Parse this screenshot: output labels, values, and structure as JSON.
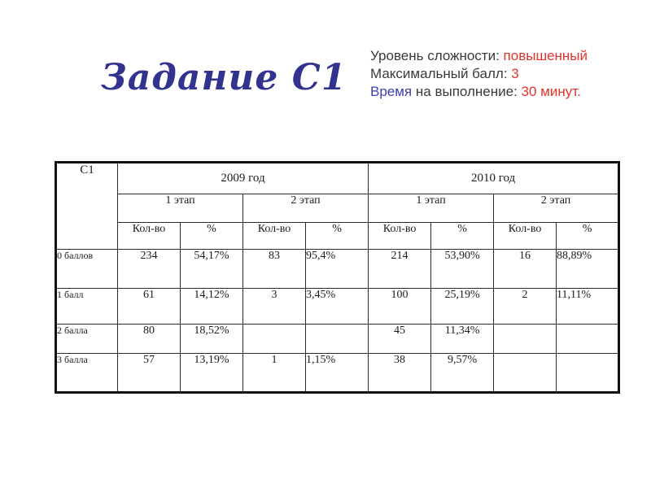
{
  "title": {
    "text": "Задание С1",
    "color": "#32328f"
  },
  "info": {
    "lines": [
      {
        "segments": [
          {
            "text": "Уровень сложности: ",
            "color": "#3a3a3a"
          },
          {
            "text": "повышенный",
            "color": "#e0342b"
          }
        ]
      },
      {
        "segments": [
          {
            "text": "Максимальный балл: ",
            "color": "#3a3a3a"
          },
          {
            "text": "3",
            "color": "#e0342b"
          }
        ]
      },
      {
        "segments": [
          {
            "text": "Время",
            "color": "#3d3dae"
          },
          {
            "text": " на выполнение: ",
            "color": "#3a3a3a"
          },
          {
            "text": "30 минут.",
            "color": "#e0342b"
          }
        ]
      }
    ]
  },
  "table": {
    "corner_label": "С1",
    "year_headers": [
      "2009 год",
      "2010 год"
    ],
    "stage_headers": [
      "1 этап",
      "2 этап",
      "1 этап",
      "2 этап"
    ],
    "col_headers": [
      "Кол-во",
      "%",
      "Кол-во",
      "%",
      "Кол-во",
      "%",
      "Кол-во",
      "%"
    ],
    "rows": [
      {
        "label": "0 баллов",
        "values": [
          "234",
          "54,17%",
          "83",
          "95,4%",
          "214",
          "53,90%",
          "16",
          "88,89%"
        ]
      },
      {
        "label": "1 балл",
        "values": [
          "61",
          "14,12%",
          "3",
          "3,45%",
          "100",
          "25,19%",
          "2",
          "11,11%"
        ]
      },
      {
        "label": "2 балла",
        "values": [
          "80",
          "18,52%",
          "",
          "",
          "45",
          "11,34%",
          "",
          ""
        ]
      },
      {
        "label": "3 балла",
        "values": [
          "57",
          "13,19%",
          "1",
          "1,15%",
          "38",
          "9,57%",
          "",
          ""
        ]
      }
    ]
  }
}
